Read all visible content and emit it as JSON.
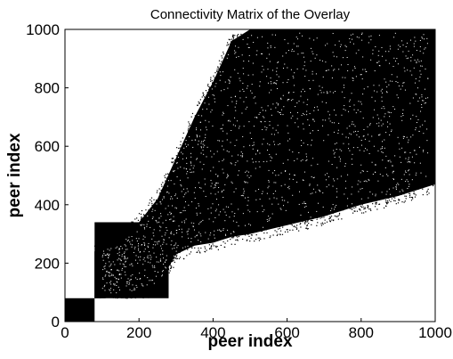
{
  "chart_data": {
    "type": "scatter",
    "title": "Connectivity Matrix of the Overlay",
    "xlabel": "peer index",
    "ylabel": "peer index",
    "xlim": [
      0,
      1000
    ],
    "ylim": [
      0,
      1000
    ],
    "xticks": [
      "0",
      "200",
      "400",
      "600",
      "800",
      "1000"
    ],
    "yticks": [
      "0",
      "200",
      "400",
      "600",
      "800",
      "1000"
    ],
    "xtick_values": [
      0,
      200,
      400,
      600,
      800,
      1000
    ],
    "ytick_values": [
      0,
      200,
      400,
      600,
      800,
      1000
    ],
    "grid": false,
    "marker_color": "#000000",
    "regions": [
      {
        "x_range": [
          0,
          80
        ],
        "y_range": [
          0,
          80
        ]
      },
      {
        "x_range": [
          80,
          110
        ],
        "y_range": [
          80,
          240
        ]
      },
      {
        "x_range": [
          80,
          280
        ],
        "y_range": [
          80,
          340
        ]
      }
    ],
    "envelope": [
      {
        "x": 80,
        "y_low": 80,
        "y_high": 240
      },
      {
        "x": 150,
        "y_low": 90,
        "y_high": 280
      },
      {
        "x": 200,
        "y_low": 100,
        "y_high": 340
      },
      {
        "x": 250,
        "y_low": 120,
        "y_high": 420
      },
      {
        "x": 300,
        "y_low": 230,
        "y_high": 560
      },
      {
        "x": 350,
        "y_low": 260,
        "y_high": 700
      },
      {
        "x": 400,
        "y_low": 270,
        "y_high": 820
      },
      {
        "x": 450,
        "y_low": 290,
        "y_high": 960
      },
      {
        "x": 500,
        "y_low": 300,
        "y_high": 1000
      },
      {
        "x": 600,
        "y_low": 330,
        "y_high": 1000
      },
      {
        "x": 700,
        "y_low": 360,
        "y_high": 1000
      },
      {
        "x": 800,
        "y_low": 400,
        "y_high": 1000
      },
      {
        "x": 900,
        "y_low": 430,
        "y_high": 1000
      },
      {
        "x": 1000,
        "y_low": 470,
        "y_high": 1000
      }
    ]
  }
}
